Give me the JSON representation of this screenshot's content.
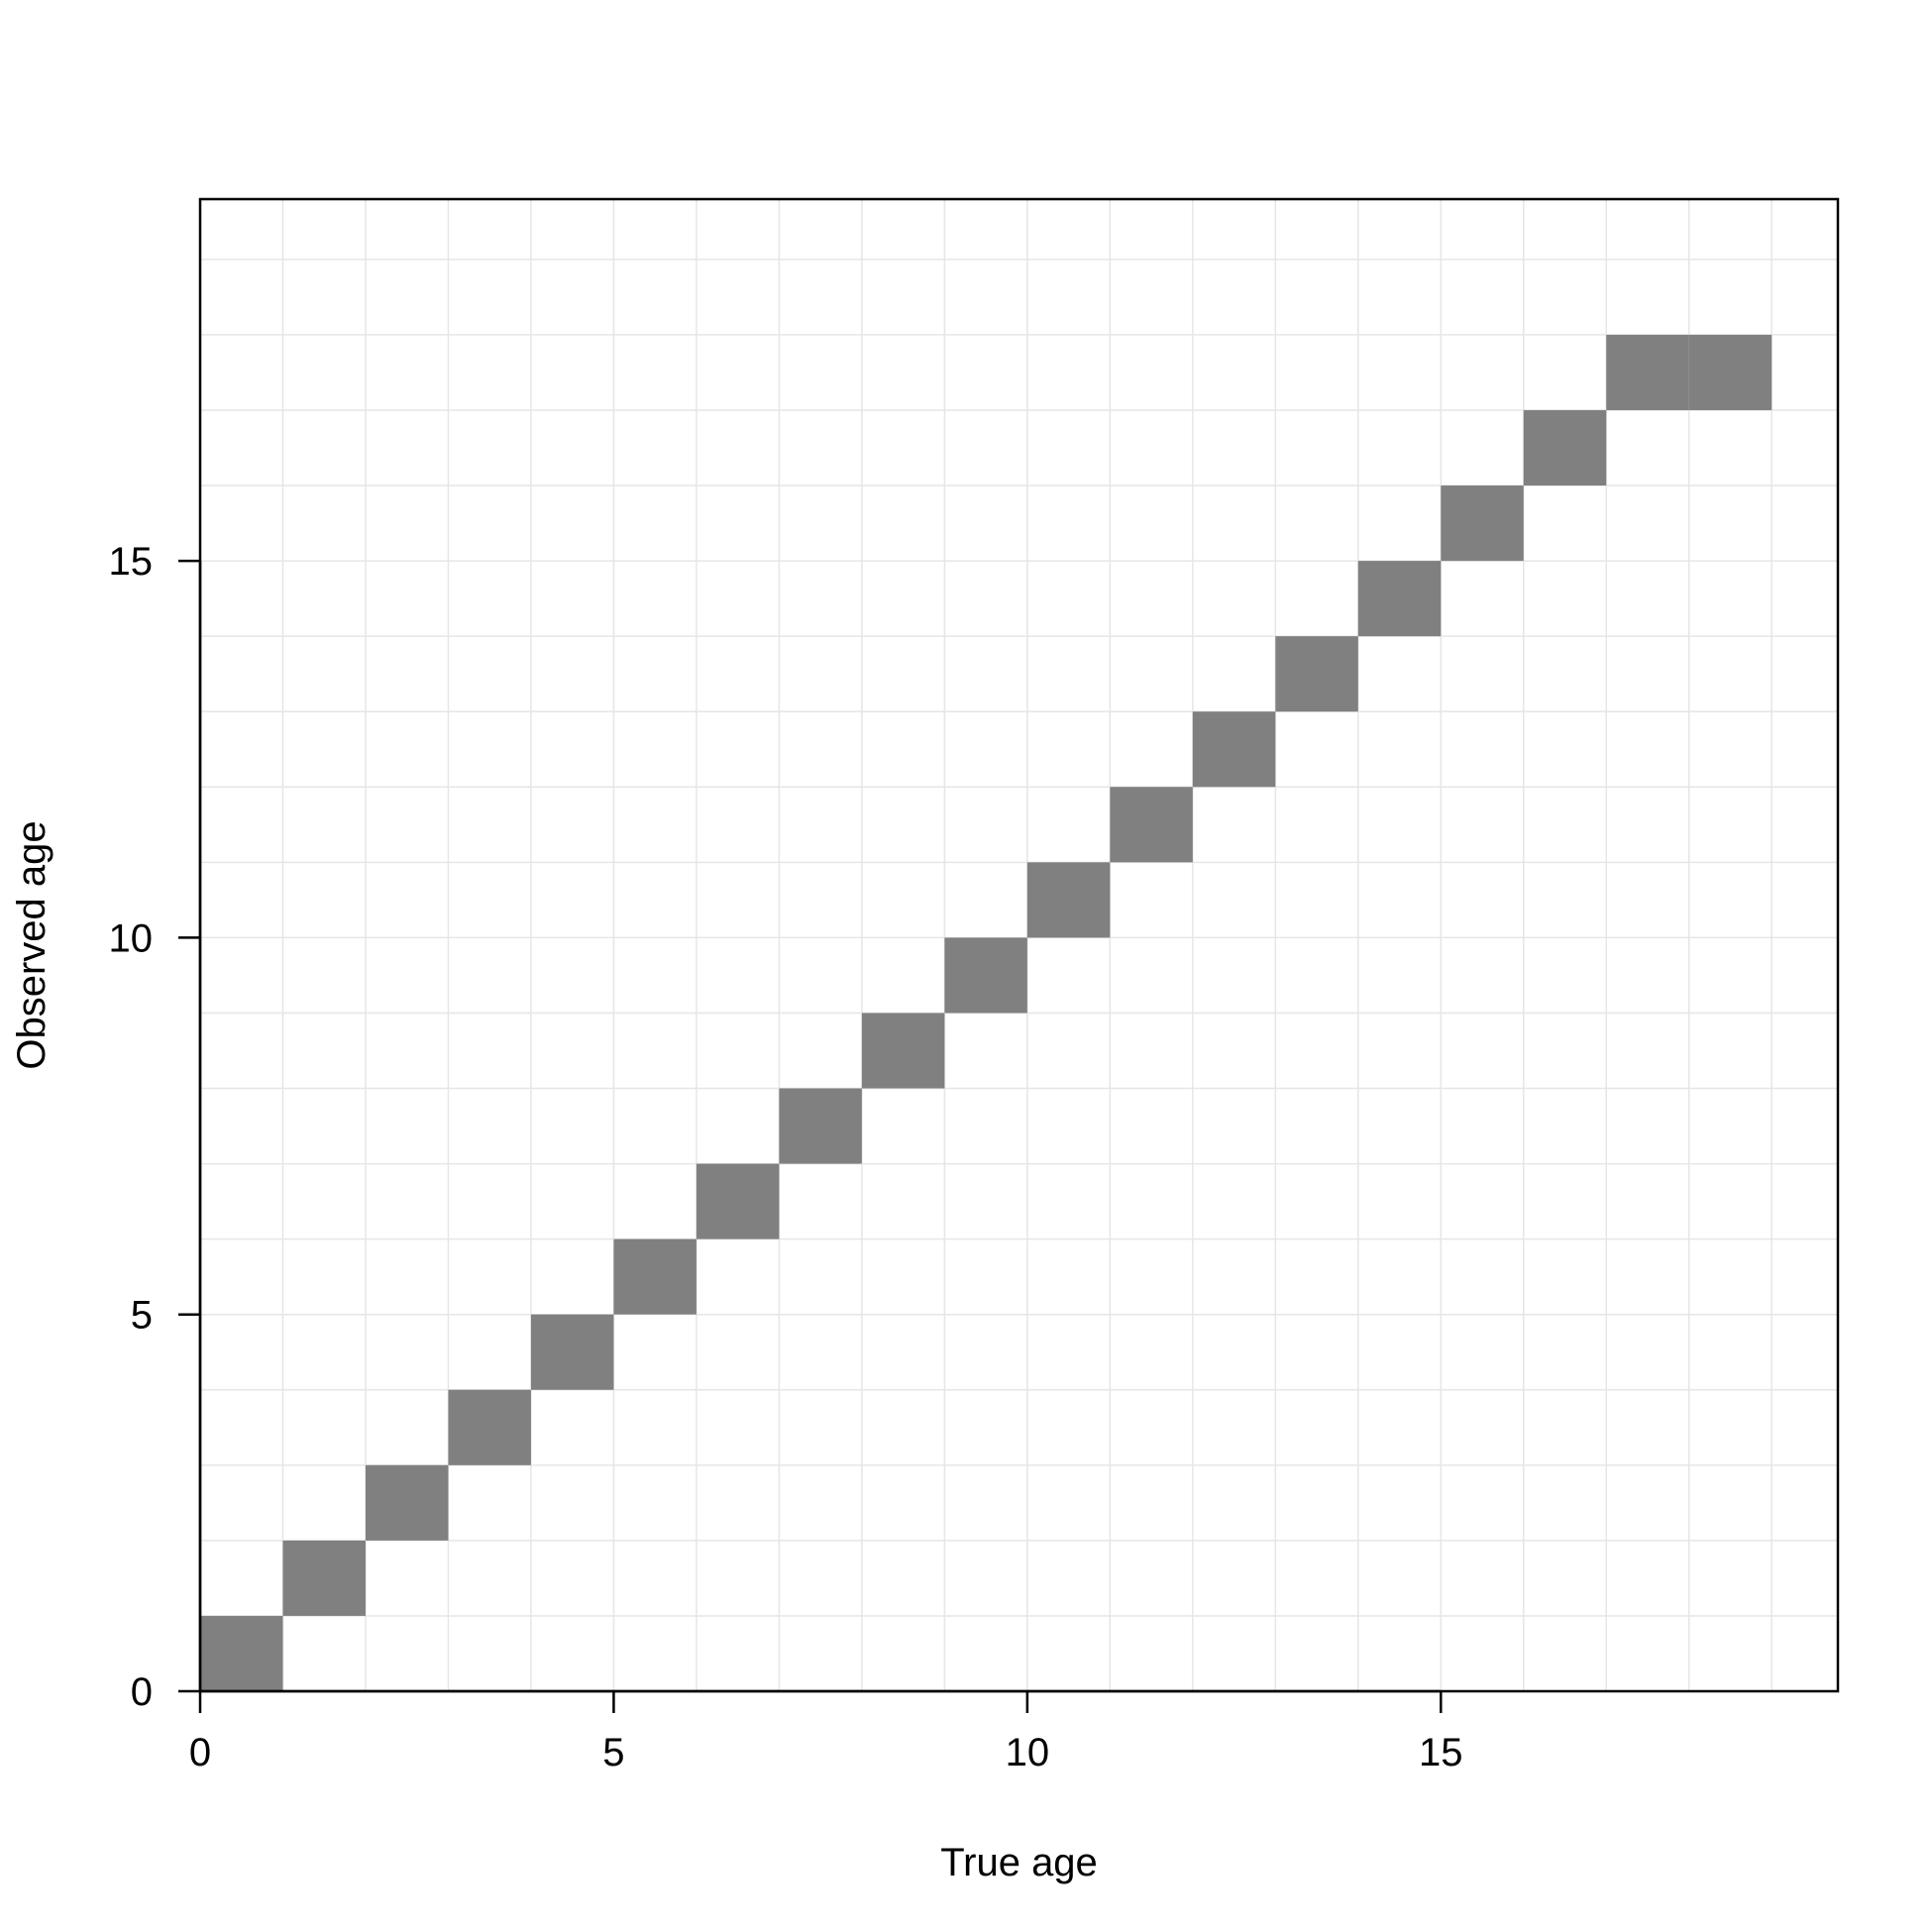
{
  "chart_data": {
    "type": "heatmap",
    "title": "",
    "xlabel": "True age",
    "ylabel": "Observed age",
    "xlim": [
      0,
      19.8
    ],
    "ylim": [
      0,
      19.8
    ],
    "xticks": [
      0,
      5,
      10,
      15
    ],
    "yticks": [
      0,
      5,
      10,
      15
    ],
    "grid": true,
    "cell_color": "#808080",
    "grid_color": "#e6e6e6",
    "cells": [
      {
        "true_age": 0,
        "observed_age": 0
      },
      {
        "true_age": 1,
        "observed_age": 1
      },
      {
        "true_age": 2,
        "observed_age": 2
      },
      {
        "true_age": 3,
        "observed_age": 3
      },
      {
        "true_age": 4,
        "observed_age": 4
      },
      {
        "true_age": 5,
        "observed_age": 5
      },
      {
        "true_age": 6,
        "observed_age": 6
      },
      {
        "true_age": 7,
        "observed_age": 7
      },
      {
        "true_age": 8,
        "observed_age": 8
      },
      {
        "true_age": 9,
        "observed_age": 9
      },
      {
        "true_age": 10,
        "observed_age": 10
      },
      {
        "true_age": 11,
        "observed_age": 11
      },
      {
        "true_age": 12,
        "observed_age": 12
      },
      {
        "true_age": 13,
        "observed_age": 13
      },
      {
        "true_age": 14,
        "observed_age": 14
      },
      {
        "true_age": 15,
        "observed_age": 15
      },
      {
        "true_age": 16,
        "observed_age": 16
      },
      {
        "true_age": 17,
        "observed_age": 17
      },
      {
        "true_age": 18,
        "observed_age": 17
      }
    ]
  }
}
